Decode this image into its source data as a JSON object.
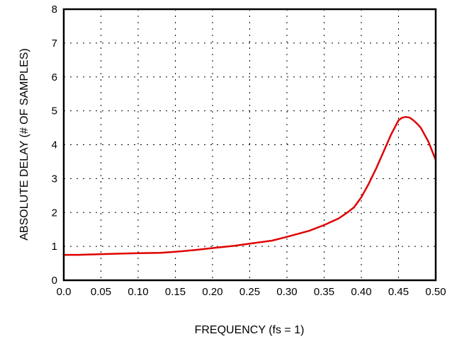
{
  "chart_data": {
    "type": "line",
    "xlabel": "FREQUENCY (fs = 1)",
    "ylabel": "ABSOLUTE DELAY (# OF SAMPLES)",
    "xlim": [
      0.0,
      0.5
    ],
    "ylim": [
      0,
      8
    ],
    "x_ticks": [
      "0.0",
      "0.05",
      "0.10",
      "0.15",
      "0.20",
      "0.25",
      "0.30",
      "0.35",
      "0.40",
      "0.45",
      "0.50"
    ],
    "y_ticks": [
      "0",
      "1",
      "2",
      "3",
      "4",
      "5",
      "6",
      "7",
      "8"
    ],
    "grid": true,
    "series": [
      {
        "color": "#e00000",
        "x": [
          0.0,
          0.02,
          0.05,
          0.08,
          0.1,
          0.13,
          0.15,
          0.18,
          0.2,
          0.23,
          0.25,
          0.28,
          0.3,
          0.33,
          0.35,
          0.37,
          0.38,
          0.39,
          0.4,
          0.41,
          0.42,
          0.43,
          0.44,
          0.45,
          0.455,
          0.46,
          0.465,
          0.47,
          0.475,
          0.48,
          0.49,
          0.5
        ],
        "y": [
          0.75,
          0.75,
          0.77,
          0.79,
          0.8,
          0.81,
          0.84,
          0.9,
          0.95,
          1.02,
          1.08,
          1.17,
          1.28,
          1.46,
          1.63,
          1.83,
          1.98,
          2.15,
          2.45,
          2.85,
          3.3,
          3.8,
          4.3,
          4.72,
          4.8,
          4.82,
          4.8,
          4.72,
          4.62,
          4.5,
          4.1,
          3.55
        ]
      }
    ]
  }
}
